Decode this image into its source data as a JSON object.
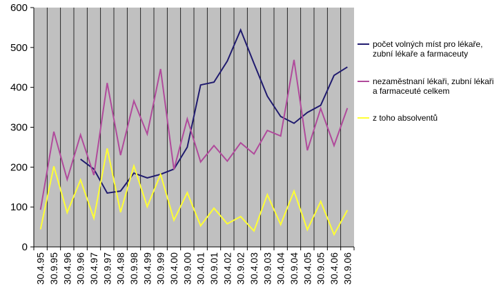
{
  "chart_data": {
    "type": "line",
    "categories": [
      "30.4.95",
      "30.9.95",
      "30.4.96",
      "30.9.96",
      "30.4.97",
      "30.9.97",
      "30.4.98",
      "30.9.98",
      "30.4.99",
      "30.9.99",
      "30.4.00",
      "30.9.00",
      "30.4.01",
      "30.9.01",
      "30.4.02",
      "30.9.02",
      "30.4.03",
      "30.9.03",
      "30.4.04",
      "30.9.04",
      "30.4.05",
      "30.9.05",
      "30.4.06",
      "30.9.06"
    ],
    "ylim": [
      0,
      600
    ],
    "yticks": [
      0,
      100,
      200,
      300,
      400,
      500,
      600
    ],
    "grid": "vertical",
    "legend_position": "right",
    "plot_background": "#c0c0c0",
    "series": [
      {
        "name": "počet volných míst pro lékaře, zubní lékaře a farmaceuty",
        "legend_lines": [
          "počet volných míst pro lékaře,",
          "zubní lékaře a farmaceuty"
        ],
        "color": "#1f1a6e",
        "values": [
          null,
          null,
          null,
          220,
          195,
          135,
          140,
          185,
          173,
          182,
          195,
          250,
          406,
          413,
          466,
          544,
          460,
          378,
          327,
          310,
          337,
          355,
          430,
          451
        ]
      },
      {
        "name": "nezaměstnaní lékaři, zubní lékaři a farmaceuté celkem",
        "legend_lines": [
          "nezaměstnaní lékaři, zubní lékaři",
          "a farmaceuté celkem"
        ],
        "color": "#b04a9b",
        "values": [
          93,
          289,
          169,
          281,
          180,
          411,
          230,
          366,
          283,
          446,
          194,
          321,
          213,
          254,
          215,
          261,
          233,
          292,
          278,
          469,
          242,
          347,
          254,
          348
        ]
      },
      {
        "name": "z toho absolventů",
        "legend_lines": [
          "z   toho absolventů"
        ],
        "color": "#ffff33",
        "values": [
          44,
          202,
          86,
          168,
          72,
          247,
          87,
          203,
          101,
          182,
          67,
          136,
          53,
          97,
          58,
          76,
          40,
          131,
          56,
          140,
          43,
          114,
          31,
          92
        ]
      }
    ]
  }
}
